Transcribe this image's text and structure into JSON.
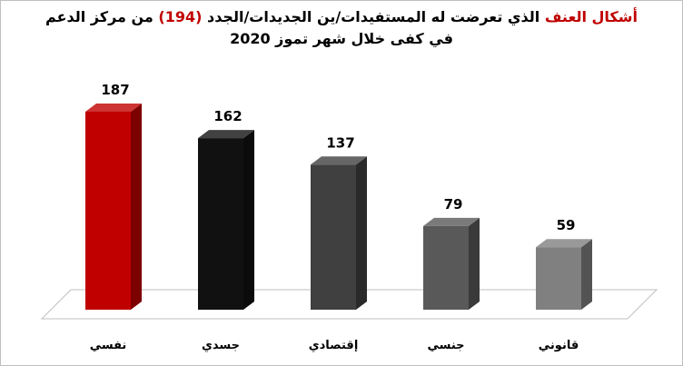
{
  "chart_data": {
    "type": "bar3d",
    "title_line1": [
      {
        "text": "أشكال العنف",
        "color": "#c00000"
      },
      {
        "text": " الذي تعرضت له المستفيدات/ين الجديدات/الجدد ",
        "color": "#000000"
      },
      {
        "text": "(194)",
        "color": "#c00000"
      },
      {
        "text": " من مركز الدعم",
        "color": "#000000"
      }
    ],
    "title_line2": "في كفى خلال شهر تموز 2020",
    "categories": [
      "نفسي",
      "جسدي",
      "إقتصادي",
      "جنسي",
      "قانوني"
    ],
    "values": [
      187,
      162,
      137,
      79,
      59
    ],
    "colors": [
      "#c00000",
      "#111111",
      "#404040",
      "#595959",
      "#808080"
    ]
  }
}
